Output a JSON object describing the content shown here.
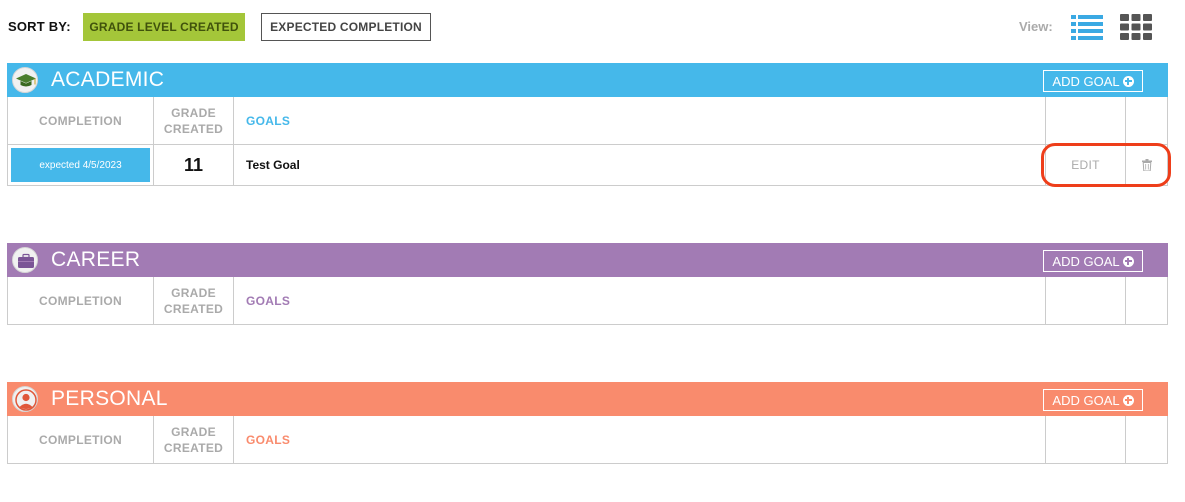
{
  "sort": {
    "label": "SORT BY:",
    "active": "GRADE LEVEL CREATED",
    "inactive": "EXPECTED COMPLETION"
  },
  "view": {
    "label": "View:",
    "list_icon": "list-view-icon",
    "grid_icon": "grid-view-icon"
  },
  "colors": {
    "academic": "#45b8ea",
    "career": "#a27bb4",
    "personal": "#f98b6d",
    "sort_active_bg": "#a4c639",
    "highlight": "#ee3e1a",
    "view_icon_blue": "#3aa9e3",
    "view_icon_gray": "#555555"
  },
  "headers": {
    "completion": "COMPLETION",
    "grade_line1": "GRADE",
    "grade_line2": "CREATED",
    "goals": "GOALS"
  },
  "sections": {
    "academic": {
      "title": "ACADEMIC",
      "icon": "graduation-cap-icon",
      "add_goal": "ADD GOAL",
      "goals": [
        {
          "expected": "expected 4/5/2023",
          "grade": "11",
          "name": "Test Goal",
          "edit": "EDIT",
          "delete_icon": "trash-icon"
        }
      ]
    },
    "career": {
      "title": "CAREER",
      "icon": "briefcase-icon",
      "add_goal": "ADD GOAL"
    },
    "personal": {
      "title": "PERSONAL",
      "icon": "person-icon",
      "add_goal": "ADD GOAL"
    }
  }
}
